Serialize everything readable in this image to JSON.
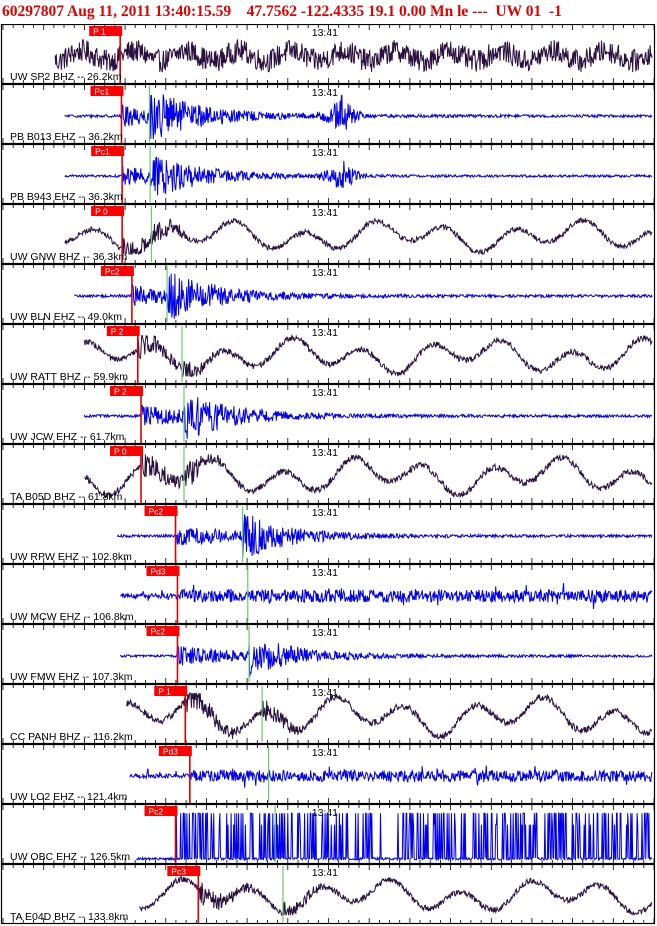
{
  "header": {
    "text": "60297807 Aug 11, 2011 13:40:15.59    47.7562 -122.4335 19.1 0.00 Mn le ---  UW 01  -1"
  },
  "colors": {
    "header": "#e00000",
    "pick_flag": "#ff0000",
    "pick_line": "#e00000",
    "s_line": "#66cc66",
    "trace_blue": "#0000ee",
    "trace_dark": "#2a1040"
  },
  "chart_data": {
    "type": "line",
    "title": "60297807 Aug 11, 2011 13:40:15.59    47.7562 -122.4335 19.1 0.00 Mn le ---  UW 01  -1",
    "time_marker": "13:41",
    "panels": [
      {
        "station": "UW SP2 BHZ -- 26.2km",
        "pick": "P 1",
        "color": "dark",
        "style": "rumble",
        "start": 0.08,
        "pick_t": 0.18,
        "s_t": null,
        "amp": 0.85
      },
      {
        "station": "PB B013 EHZ -- 36.2km",
        "pick": "Pc1",
        "color": "blue",
        "style": "burst",
        "start": 0.095,
        "pick_t": 0.182,
        "s_t": 0.225,
        "amp": 0.95
      },
      {
        "station": "PB B943 EHZ -- 36.3km",
        "pick": "Pc1",
        "color": "blue",
        "style": "burst",
        "start": 0.095,
        "pick_t": 0.183,
        "s_t": 0.226,
        "amp": 0.8
      },
      {
        "station": "UW GNW BHZ -- 36.3km",
        "pick": "P 0",
        "color": "dark",
        "style": "swell",
        "start": 0.095,
        "pick_t": 0.183,
        "s_t": 0.228,
        "amp": 0.75
      },
      {
        "station": "UW BLN EHZ -- 49.0km",
        "pick": "Pc2",
        "color": "blue",
        "style": "burst",
        "start": 0.11,
        "pick_t": 0.198,
        "s_t": 0.252,
        "amp": 0.95
      },
      {
        "station": "UW RATT BHZ -- 59.9km",
        "pick": "P 2",
        "color": "dark",
        "style": "swell",
        "start": 0.125,
        "pick_t": 0.207,
        "s_t": 0.275,
        "amp": 0.85
      },
      {
        "station": "UW JCW EHZ -- 61.7km",
        "pick": "P 2",
        "color": "blue",
        "style": "burst",
        "start": 0.125,
        "pick_t": 0.212,
        "s_t": 0.278,
        "amp": 0.95
      },
      {
        "station": "TA B05D BHZ -- 61.8km",
        "pick": "P 0",
        "color": "dark",
        "style": "swell",
        "start": 0.125,
        "pick_t": 0.212,
        "s_t": 0.278,
        "amp": 0.9
      },
      {
        "station": "UW RPW EHZ -- 102.8km",
        "pick": "Pc2",
        "color": "blue",
        "style": "burst",
        "start": 0.175,
        "pick_t": 0.265,
        "s_t": 0.368,
        "amp": 0.9
      },
      {
        "station": "UW MCW EHZ -- 106.8km",
        "pick": "Pd3",
        "color": "blue",
        "style": "noise",
        "start": 0.18,
        "pick_t": 0.268,
        "s_t": 0.376,
        "amp": 0.55
      },
      {
        "station": "UW FMW EHZ -- 107.3km",
        "pick": "Pc2",
        "color": "blue",
        "style": "burst",
        "start": 0.18,
        "pick_t": 0.268,
        "s_t": 0.378,
        "amp": 0.85
      },
      {
        "station": "CC PANH BHZ -- 116.2km",
        "pick": "P 1",
        "color": "dark",
        "style": "swell",
        "start": 0.19,
        "pick_t": 0.28,
        "s_t": 0.398,
        "amp": 0.95
      },
      {
        "station": "UW LO2 EHZ -- 121.4km",
        "pick": "Pd3",
        "color": "blue",
        "style": "noise",
        "start": 0.195,
        "pick_t": 0.287,
        "s_t": 0.408,
        "amp": 0.5
      },
      {
        "station": "UW OBC EHZ -- 126.5km",
        "pick": "Pc2",
        "color": "blue",
        "style": "spikes",
        "start": 0.205,
        "pick_t": 0.265,
        "s_t": 0.418,
        "amp": 1.0
      },
      {
        "station": "TA E04D BHZ -- 133.8km",
        "pick": "Pc3",
        "color": "dark",
        "style": "swell",
        "start": 0.21,
        "pick_t": 0.3,
        "s_t": 0.43,
        "amp": 0.8
      }
    ]
  }
}
